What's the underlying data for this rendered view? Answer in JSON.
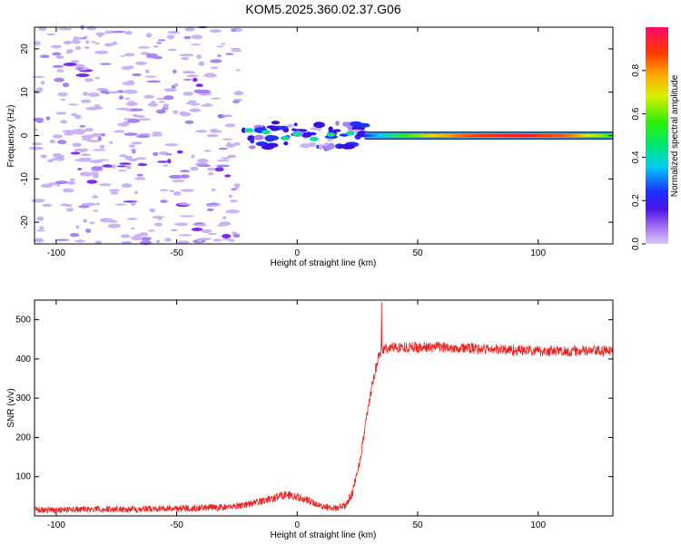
{
  "title": "KOM5.2025.360.02.37.G06",
  "colors": {
    "snr_line": "#e8201e",
    "axis": "#000000",
    "background": "#ffffff",
    "speckle": "#c9b3f5",
    "blob": "#7b2cf0"
  },
  "chart_data": [
    {
      "type": "heatmap",
      "xlabel": "Height of straight line (km)",
      "ylabel": "Frequency (Hz)",
      "xlim": [
        -109,
        131
      ],
      "ylim": [
        -25,
        25
      ],
      "xticks": [
        -100,
        -50,
        0,
        50,
        100
      ],
      "yticks": [
        -20,
        -10,
        0,
        10,
        20
      ],
      "xtick_labels": [
        "-100",
        "-50",
        "0",
        "50",
        "100"
      ],
      "ytick_labels": [
        "-20",
        "-10",
        "0",
        "10",
        "20"
      ],
      "colorbar": {
        "label": "Normalized spectral amplitude",
        "range": [
          0,
          1
        ],
        "ticks": [
          0.0,
          0.2,
          0.4,
          0.6,
          0.8
        ],
        "tick_labels": [
          "0.0",
          "0.2",
          "0.4",
          "0.6",
          "0.8"
        ],
        "colormap": "hsv-like (magenta → blue → cyan → green → yellow → red)"
      },
      "description_values": {
        "noise_region_x": [
          -109,
          -24
        ],
        "transition_region_x": [
          -24,
          28
        ],
        "signal_band_x": [
          28,
          131
        ],
        "signal_band_frequency_hz": 0
      }
    },
    {
      "type": "line",
      "xlabel": "Height of straight line (km)",
      "ylabel": "SNR (v/v)",
      "xlim": [
        -109,
        131
      ],
      "ylim": [
        0,
        550
      ],
      "xticks": [
        -100,
        -50,
        0,
        50,
        100
      ],
      "yticks": [
        100,
        200,
        300,
        400,
        500
      ],
      "xtick_labels": [
        "-100",
        "-50",
        "0",
        "50",
        "100"
      ],
      "ytick_labels": [
        "100",
        "200",
        "300",
        "400",
        "500"
      ],
      "series": [
        {
          "name": "SNR",
          "x": [
            -109,
            -60,
            -30,
            -20,
            -10,
            -5,
            0,
            5,
            10,
            15,
            20,
            23,
            26,
            29,
            32,
            34,
            35,
            36,
            40,
            60,
            80,
            100,
            131
          ],
          "values": [
            15,
            18,
            22,
            30,
            45,
            55,
            48,
            38,
            25,
            20,
            25,
            60,
            140,
            260,
            360,
            410,
            425,
            425,
            430,
            430,
            425,
            420,
            420
          ],
          "spike": {
            "x": 35,
            "value": 545
          }
        }
      ]
    }
  ]
}
